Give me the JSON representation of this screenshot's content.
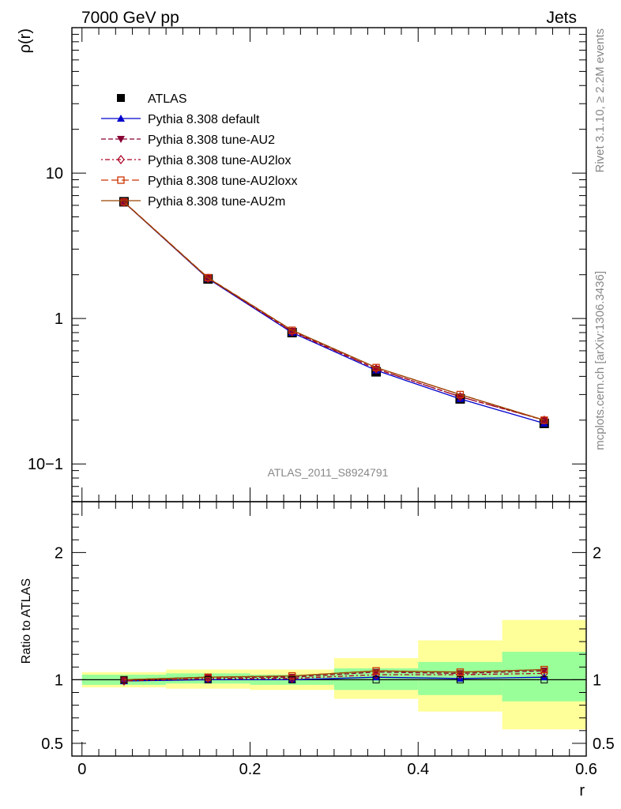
{
  "header": {
    "left": "7000 GeV pp",
    "right": "Jets"
  },
  "side_labels": {
    "rivet": "Rivet 3.1.10, ≥ 2.2M events",
    "mcplots": "mcplots.cern.ch [arXiv:1306.3436]"
  },
  "watermark": "ATLAS_2011_S8924791",
  "colors": {
    "data": "#000000",
    "default": "#0000cc",
    "au2": "#880033",
    "au2lox": "#aa0022",
    "au2loxx": "#cc3300",
    "au2m": "#994400",
    "band_green": "#99ff99",
    "band_yellow": "#ffff99"
  },
  "chart_data": [
    {
      "type": "line",
      "xlabel": "r",
      "ylabel": "ρ(r)",
      "yscale": "log",
      "xlim": [
        -0.012,
        0.6
      ],
      "ylim": [
        0.055,
        100
      ],
      "ytick_labels": [
        "10−1",
        "1",
        "10"
      ],
      "legend_position": "top-left",
      "x": [
        0.05,
        0.15,
        0.25,
        0.35,
        0.45,
        0.55
      ],
      "x_bins": [
        [
          0.0,
          0.1
        ],
        [
          0.1,
          0.2
        ],
        [
          0.2,
          0.3
        ],
        [
          0.3,
          0.4
        ],
        [
          0.4,
          0.5
        ],
        [
          0.5,
          0.6
        ]
      ],
      "series": [
        {
          "name": "ATLAS",
          "key": "data",
          "marker": "square",
          "values": [
            6.35,
            1.87,
            0.8,
            0.43,
            0.28,
            0.19
          ]
        },
        {
          "name": "Pythia 8.308 default",
          "key": "default",
          "marker": "triangle-up",
          "dash": "solid",
          "values": [
            6.3,
            1.88,
            0.8,
            0.44,
            0.28,
            0.19
          ]
        },
        {
          "name": "Pythia 8.308 tune-AU2",
          "key": "au2",
          "marker": "triangle-down",
          "dash": "dashed",
          "values": [
            6.32,
            1.9,
            0.82,
            0.45,
            0.29,
            0.2
          ]
        },
        {
          "name": "Pythia 8.308 tune-AU2lox",
          "key": "au2lox",
          "marker": "diamond-open",
          "dash": "dotdash",
          "values": [
            6.3,
            1.89,
            0.81,
            0.45,
            0.29,
            0.2
          ]
        },
        {
          "name": "Pythia 8.308 tune-AU2loxx",
          "key": "au2loxx",
          "marker": "square-open",
          "dash": "longdash",
          "values": [
            6.33,
            1.91,
            0.83,
            0.46,
            0.3,
            0.2
          ]
        },
        {
          "name": "Pythia 8.308 tune-AU2m",
          "key": "au2m",
          "marker": "none",
          "dash": "solid",
          "values": [
            6.32,
            1.9,
            0.83,
            0.46,
            0.3,
            0.2
          ]
        }
      ]
    },
    {
      "type": "line",
      "xlabel": "r",
      "ylabel": "Ratio to ATLAS",
      "xlim": [
        -0.012,
        0.6
      ],
      "ylim": [
        0.4,
        2.4
      ],
      "ytick_labels": [
        "0.5",
        "1",
        "2"
      ],
      "xtick_labels": [
        "0",
        "0.2",
        "0.4",
        "0.6"
      ],
      "reference_line": 1.0,
      "bands": {
        "green": [
          [
            0.96,
            1.04
          ],
          [
            0.97,
            1.05
          ],
          [
            0.96,
            1.04
          ],
          [
            0.92,
            1.09
          ],
          [
            0.88,
            1.14
          ],
          [
            0.83,
            1.22
          ]
        ],
        "yellow": [
          [
            0.94,
            1.06
          ],
          [
            0.93,
            1.08
          ],
          [
            0.92,
            1.08
          ],
          [
            0.85,
            1.17
          ],
          [
            0.75,
            1.31
          ],
          [
            0.61,
            1.47
          ]
        ]
      },
      "series": [
        {
          "key": "default",
          "values": [
            0.99,
            1.0,
            1.0,
            1.02,
            1.01,
            1.02
          ]
        },
        {
          "key": "au2",
          "values": [
            1.0,
            1.02,
            1.02,
            1.06,
            1.05,
            1.07
          ]
        },
        {
          "key": "au2lox",
          "values": [
            0.99,
            1.01,
            1.01,
            1.04,
            1.04,
            1.05
          ]
        },
        {
          "key": "au2loxx",
          "values": [
            1.0,
            1.02,
            1.03,
            1.07,
            1.06,
            1.08
          ]
        },
        {
          "key": "au2m",
          "values": [
            1.0,
            1.02,
            1.03,
            1.07,
            1.06,
            1.08
          ]
        }
      ]
    }
  ]
}
